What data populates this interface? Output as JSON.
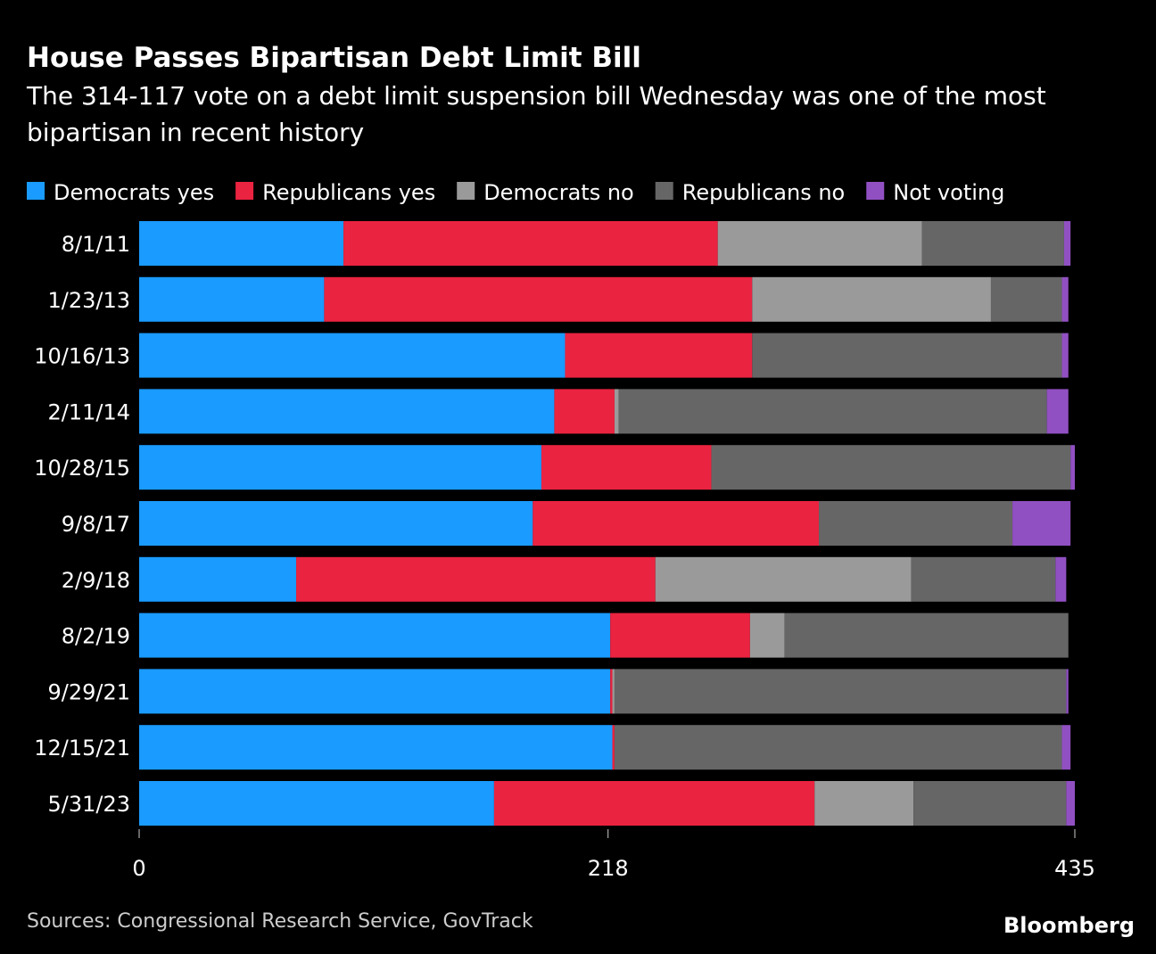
{
  "chart_data": {
    "type": "stacked-bar-horizontal",
    "title": "House Passes Bipartisan Debt Limit Bill",
    "subtitle": "The 314-117 vote on a debt limit suspension bill Wednesday was one of the most bipartisan in recent history",
    "source": "Sources: Congressional Research Service, GovTrack",
    "brand": "Bloomberg",
    "categories": [
      "8/1/11",
      "1/23/13",
      "10/16/13",
      "2/11/14",
      "10/28/15",
      "9/8/17",
      "2/9/18",
      "8/2/19",
      "9/29/21",
      "12/15/21",
      "5/31/23"
    ],
    "series": [
      {
        "name": "Democrats yes",
        "color": "#1a9bff",
        "values": [
          95,
          86,
          198,
          193,
          187,
          183,
          73,
          219,
          219,
          220,
          165
        ]
      },
      {
        "name": "Republicans yes",
        "color": "#ea2340",
        "values": [
          174,
          199,
          87,
          28,
          79,
          133,
          167,
          65,
          1,
          1,
          149
        ]
      },
      {
        "name": "Democrats no",
        "color": "#9a9a9a",
        "values": [
          95,
          111,
          0,
          2,
          0,
          0,
          119,
          16,
          1,
          0,
          46
        ]
      },
      {
        "name": "Republicans no",
        "color": "#666666",
        "values": [
          66,
          33,
          144,
          199,
          167,
          90,
          67,
          132,
          210,
          208,
          71
        ]
      },
      {
        "name": "Not voting",
        "color": "#9150c2",
        "values": [
          3,
          3,
          3,
          10,
          2,
          27,
          5,
          0,
          1,
          4,
          4
        ]
      }
    ],
    "xlim": [
      0,
      435
    ],
    "xticks": [
      0,
      218,
      435
    ]
  }
}
